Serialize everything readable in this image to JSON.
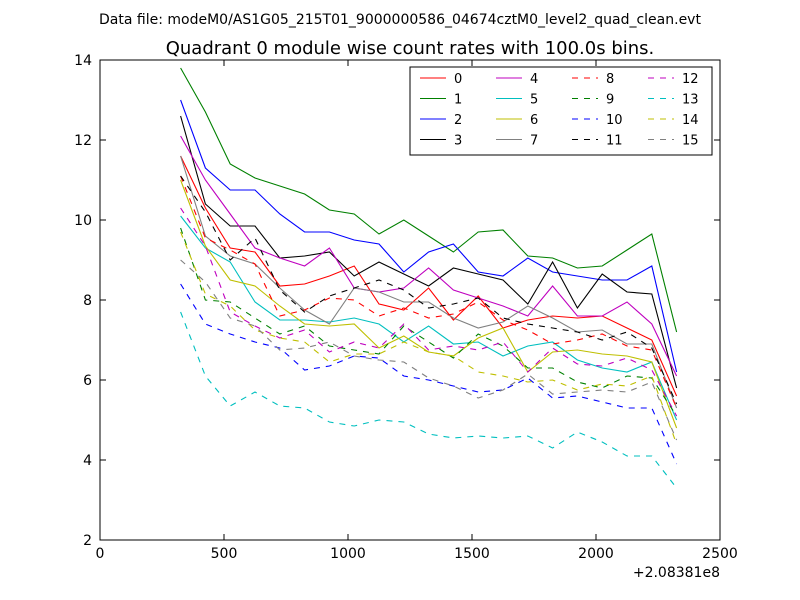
{
  "chart_data": {
    "type": "line",
    "suptitle": "Data file: modeM0/AS1G05_215T01_9000000586_04674cztM0_level2_quad_clean.evt",
    "title": "Quadrant 0 module wise count rates with 100.0s bins.",
    "xlabel": "",
    "ylabel": "",
    "x_offset_label": "+2.08381e8",
    "xlim": [
      0,
      2500
    ],
    "ylim": [
      2,
      14
    ],
    "xticks": [
      0,
      500,
      1000,
      1500,
      2000,
      2500
    ],
    "yticks": [
      2,
      4,
      6,
      8,
      10,
      12,
      14
    ],
    "xtick_labels": [
      "0",
      "500",
      "1000",
      "1500",
      "2000",
      "2500"
    ],
    "ytick_labels": [
      "2",
      "4",
      "6",
      "8",
      "10",
      "12",
      "14"
    ],
    "grid": false,
    "legend_position": "top-right",
    "x": [
      325,
      425,
      525,
      625,
      725,
      825,
      925,
      1025,
      1125,
      1225,
      1325,
      1425,
      1525,
      1625,
      1725,
      1825,
      1925,
      2025,
      2125,
      2225,
      2325
    ],
    "series": [
      {
        "name": "0",
        "color": "#ff0000",
        "dashed": false,
        "values": [
          11.6,
          10.3,
          9.3,
          9.2,
          8.35,
          8.4,
          8.6,
          8.85,
          7.9,
          7.75,
          8.3,
          7.5,
          8.1,
          7.3,
          7.5,
          7.6,
          7.55,
          7.6,
          7.3,
          7.0,
          5.6
        ]
      },
      {
        "name": "1",
        "color": "#008000",
        "dashed": false,
        "values": [
          13.8,
          12.7,
          11.4,
          11.05,
          10.85,
          10.65,
          10.25,
          10.15,
          9.65,
          10.0,
          9.6,
          9.2,
          9.7,
          9.75,
          9.1,
          9.05,
          8.8,
          8.85,
          9.25,
          9.65,
          7.2
        ]
      },
      {
        "name": "2",
        "color": "#0000ff",
        "dashed": false,
        "values": [
          13.0,
          11.3,
          10.75,
          10.75,
          10.15,
          9.7,
          9.7,
          9.5,
          9.4,
          8.7,
          9.2,
          9.4,
          8.7,
          8.6,
          9.05,
          8.7,
          8.6,
          8.5,
          8.5,
          8.85,
          6.2
        ]
      },
      {
        "name": "3",
        "color": "#000000",
        "dashed": false,
        "values": [
          12.6,
          10.4,
          9.85,
          9.85,
          9.05,
          9.1,
          9.2,
          8.6,
          8.95,
          8.65,
          8.35,
          8.8,
          8.65,
          8.5,
          7.9,
          8.95,
          7.8,
          8.65,
          8.2,
          8.15,
          5.8
        ]
      },
      {
        "name": "4",
        "color": "#bf00bf",
        "dashed": false,
        "values": [
          12.1,
          11.0,
          10.15,
          9.3,
          9.05,
          8.85,
          9.3,
          8.3,
          8.2,
          8.3,
          8.8,
          8.25,
          8.05,
          7.85,
          7.6,
          8.35,
          7.6,
          7.6,
          7.95,
          7.4,
          6.1
        ]
      },
      {
        "name": "5",
        "color": "#00bfbf",
        "dashed": false,
        "values": [
          10.1,
          9.3,
          8.95,
          7.95,
          7.5,
          7.5,
          7.45,
          7.55,
          7.4,
          6.95,
          7.35,
          6.9,
          6.95,
          6.6,
          6.85,
          6.95,
          6.5,
          6.3,
          6.2,
          6.45,
          5.0
        ]
      },
      {
        "name": "6",
        "color": "#bfbf00",
        "dashed": false,
        "values": [
          11.0,
          9.35,
          8.5,
          8.35,
          7.85,
          7.4,
          7.35,
          7.4,
          6.8,
          7.1,
          6.7,
          6.6,
          7.05,
          7.3,
          6.2,
          6.7,
          6.75,
          6.65,
          6.6,
          6.45,
          4.8
        ]
      },
      {
        "name": "7",
        "color": "#808080",
        "dashed": false,
        "values": [
          11.6,
          9.6,
          9.1,
          8.9,
          8.3,
          7.75,
          7.4,
          8.3,
          8.2,
          7.95,
          7.95,
          7.55,
          7.3,
          7.45,
          7.85,
          7.55,
          7.2,
          7.25,
          6.9,
          6.9,
          5.3
        ]
      },
      {
        "name": "8",
        "color": "#ff0000",
        "dashed": true,
        "values": [
          11.1,
          9.55,
          9.25,
          8.9,
          7.6,
          7.75,
          8.05,
          8.0,
          7.6,
          7.8,
          7.55,
          7.65,
          7.95,
          7.5,
          7.25,
          6.9,
          7.0,
          7.15,
          6.85,
          6.75,
          5.3
        ]
      },
      {
        "name": "9",
        "color": "#008000",
        "dashed": true,
        "values": [
          9.8,
          8.0,
          7.95,
          7.55,
          7.15,
          7.35,
          6.85,
          6.75,
          6.65,
          7.35,
          6.95,
          6.55,
          7.15,
          6.85,
          6.3,
          6.3,
          5.95,
          5.8,
          6.1,
          6.05,
          5.1
        ]
      },
      {
        "name": "10",
        "color": "#0000ff",
        "dashed": true,
        "values": [
          8.4,
          7.4,
          7.15,
          6.95,
          6.8,
          6.25,
          6.35,
          6.6,
          6.55,
          6.1,
          6.0,
          5.85,
          5.7,
          5.75,
          6.05,
          5.55,
          5.6,
          5.45,
          5.3,
          5.3,
          3.9
        ]
      },
      {
        "name": "11",
        "color": "#000000",
        "dashed": true,
        "values": [
          11.1,
          10.2,
          9.0,
          9.55,
          8.25,
          7.7,
          8.1,
          8.3,
          8.5,
          8.25,
          7.8,
          7.9,
          8.05,
          7.55,
          7.4,
          7.3,
          7.2,
          7.0,
          7.2,
          6.8,
          5.4
        ]
      },
      {
        "name": "12",
        "color": "#bf00bf",
        "dashed": true,
        "values": [
          10.3,
          9.35,
          7.7,
          7.35,
          7.05,
          7.25,
          6.7,
          6.95,
          6.8,
          7.4,
          6.75,
          6.85,
          6.75,
          6.95,
          6.2,
          6.8,
          6.4,
          6.35,
          6.55,
          6.25,
          5.1
        ]
      },
      {
        "name": "13",
        "color": "#00bfbf",
        "dashed": true,
        "values": [
          7.7,
          6.1,
          5.35,
          5.7,
          5.35,
          5.3,
          4.95,
          4.85,
          5.0,
          4.95,
          4.65,
          4.55,
          4.6,
          4.55,
          4.6,
          4.3,
          4.7,
          4.45,
          4.1,
          4.1,
          3.3
        ]
      },
      {
        "name": "14",
        "color": "#bfbf00",
        "dashed": true,
        "values": [
          9.7,
          8.15,
          7.85,
          7.25,
          7.05,
          6.95,
          6.45,
          6.65,
          6.65,
          6.95,
          6.7,
          6.6,
          6.2,
          6.1,
          5.95,
          6.0,
          5.75,
          5.9,
          5.85,
          6.1,
          4.4
        ]
      },
      {
        "name": "15",
        "color": "#808080",
        "dashed": true,
        "values": [
          9.0,
          8.45,
          7.55,
          7.35,
          6.75,
          6.8,
          6.95,
          6.6,
          6.5,
          6.45,
          6.05,
          5.85,
          5.55,
          5.75,
          6.15,
          5.65,
          5.7,
          5.75,
          5.7,
          5.95,
          4.5
        ]
      }
    ]
  }
}
